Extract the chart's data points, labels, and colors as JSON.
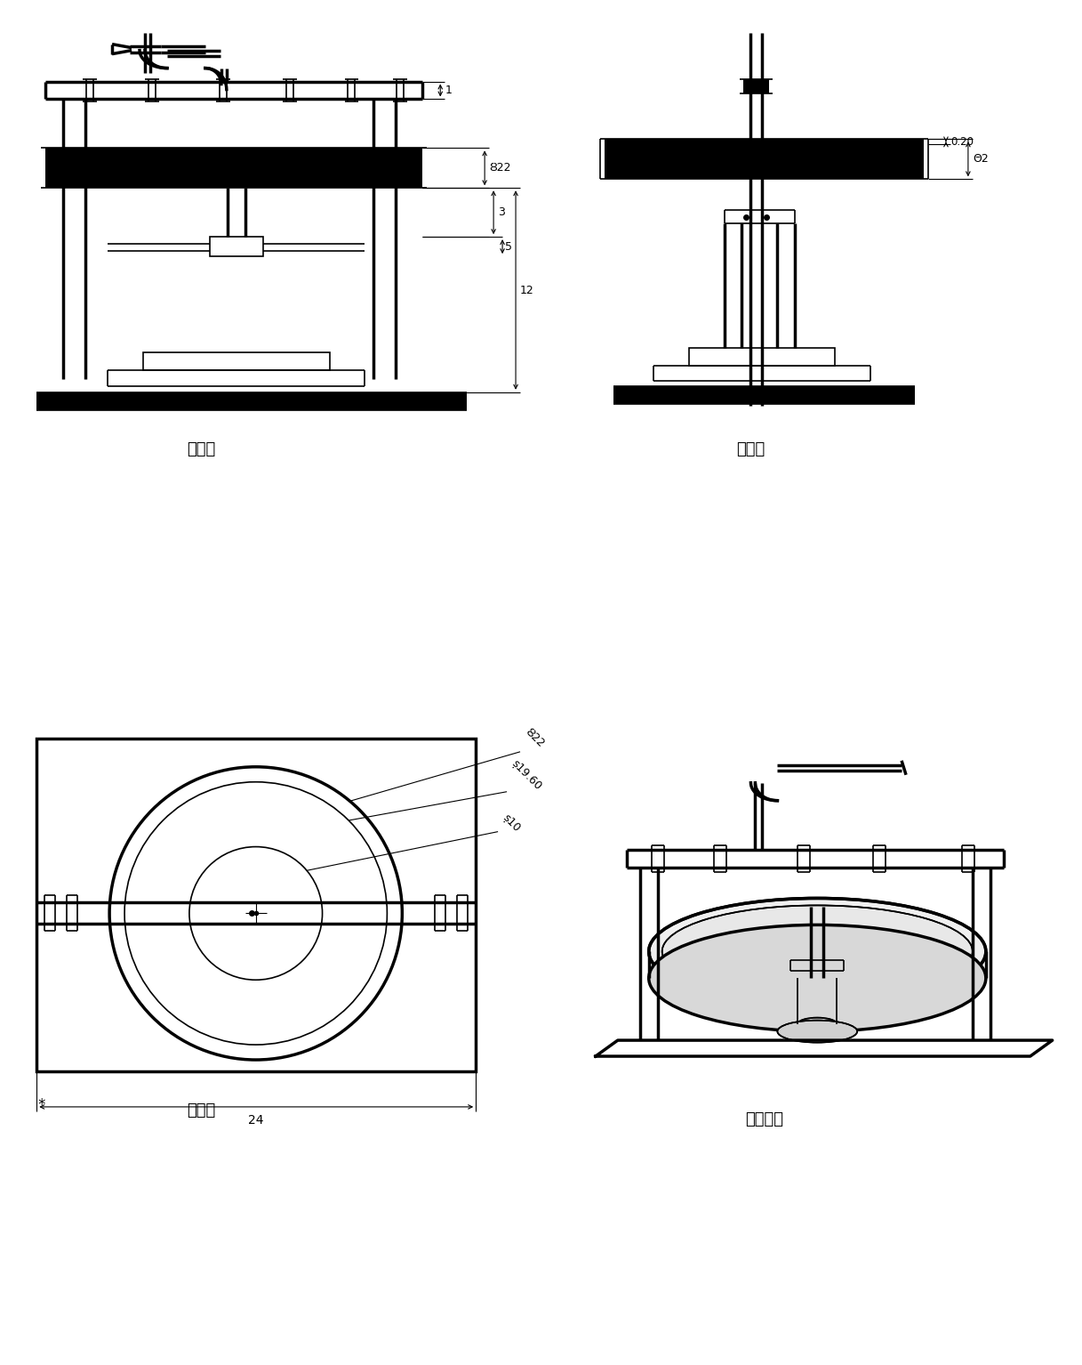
{
  "bg_color": "#ffffff",
  "views": {
    "front_label": "前视图",
    "left_label": "左视图",
    "top_label": "俦视图",
    "model_label": "模型视图"
  },
  "dims": {
    "d22": "Ȣ22",
    "d1": "1",
    "d3": "3",
    "d5": "5",
    "d12": "12",
    "d020": "0.20",
    "d2": "Θ2",
    "td22": "Ȣ22",
    "td1960": "ș19.60",
    "td10": "ș10",
    "td24": "24"
  }
}
